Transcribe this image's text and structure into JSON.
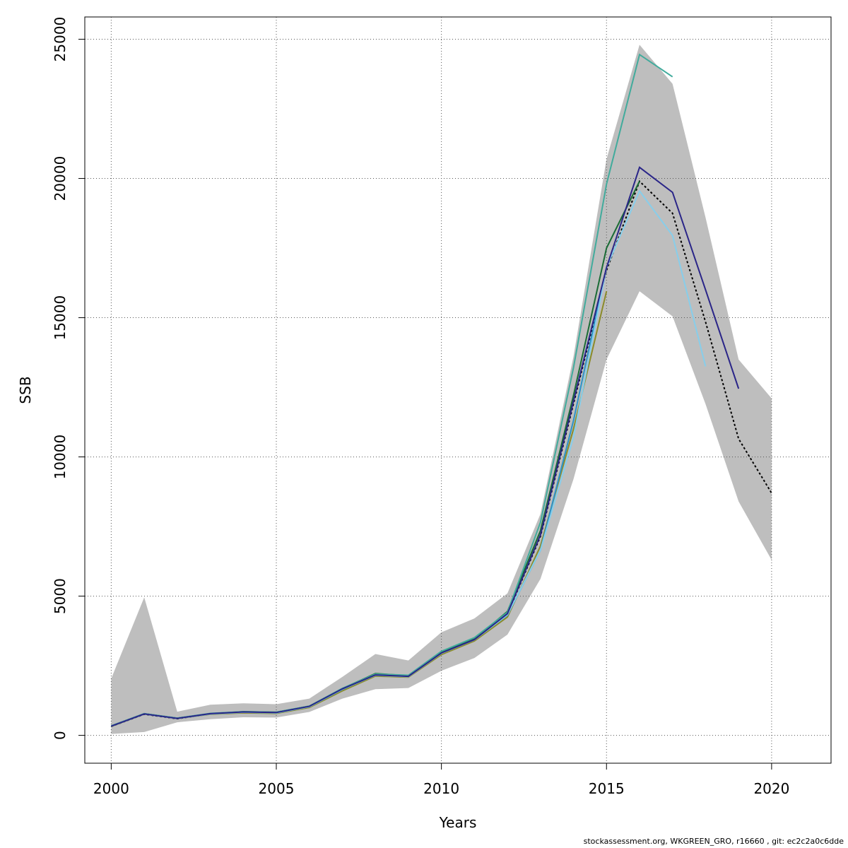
{
  "chart_data": {
    "type": "line",
    "title": "",
    "xlabel": "Years",
    "ylabel": "SSB",
    "xlim": [
      1999.2,
      2021.8
    ],
    "ylim": [
      -1000,
      25800
    ],
    "x_ticks": [
      2000,
      2005,
      2010,
      2015,
      2020
    ],
    "y_ticks": [
      0,
      5000,
      10000,
      15000,
      20000,
      25000
    ],
    "grid": true,
    "confidence_band": {
      "color": "#bebebe",
      "x": [
        2000,
        2001,
        2002,
        2003,
        2004,
        2005,
        2006,
        2007,
        2008,
        2009,
        2010,
        2011,
        2012,
        2013,
        2014,
        2015,
        2016,
        2017,
        2018,
        2019,
        2020
      ],
      "lower": [
        50,
        120,
        470,
        580,
        650,
        640,
        840,
        1320,
        1660,
        1700,
        2320,
        2780,
        3620,
        5620,
        9200,
        13500,
        15950,
        15050,
        11900,
        8400,
        6300
      ],
      "upper": [
        2040,
        4960,
        850,
        1100,
        1150,
        1120,
        1320,
        2100,
        2920,
        2690,
        3700,
        4200,
        5100,
        7950,
        13600,
        20700,
        24800,
        23400,
        18600,
        13500,
        12100
      ]
    },
    "series": [
      {
        "color": "#000000",
        "dashed": true,
        "x": [
          2000,
          2001,
          2002,
          2003,
          2004,
          2005,
          2006,
          2007,
          2008,
          2009,
          2010,
          2011,
          2012,
          2013,
          2014,
          2015,
          2016,
          2017,
          2018,
          2019,
          2020
        ],
        "values": [
          320,
          760,
          600,
          770,
          830,
          810,
          1030,
          1670,
          2150,
          2110,
          2950,
          3430,
          4350,
          7150,
          11900,
          16700,
          19900,
          18750,
          14850,
          10650,
          8700
        ]
      },
      {
        "color": "#8b8b2a",
        "x": [
          2000,
          2001,
          2002,
          2003,
          2004,
          2005,
          2006,
          2007,
          2008,
          2009,
          2010,
          2011,
          2012,
          2013,
          2014,
          2015
        ],
        "values": [
          320,
          770,
          610,
          760,
          810,
          790,
          1000,
          1600,
          2130,
          2090,
          2900,
          3390,
          4250,
          6800,
          11000,
          15950
        ]
      },
      {
        "color": "#2c93c8",
        "x": [
          2000,
          2001,
          2002,
          2003,
          2004,
          2005,
          2006,
          2007,
          2008,
          2009,
          2010,
          2011,
          2012,
          2013,
          2014,
          2015
        ],
        "values": [
          330,
          770,
          610,
          770,
          830,
          810,
          1030,
          1650,
          2170,
          2120,
          2970,
          3450,
          4320,
          6650,
          11300,
          16800
        ]
      },
      {
        "color": "#1a6b35",
        "x": [
          2000,
          2001,
          2002,
          2003,
          2004,
          2005,
          2006,
          2007,
          2008,
          2009,
          2010,
          2011,
          2012,
          2013,
          2014,
          2015,
          2016
        ],
        "values": [
          340,
          780,
          620,
          780,
          850,
          830,
          1050,
          1680,
          2220,
          2140,
          2980,
          3460,
          4450,
          7350,
          12200,
          17500,
          19900
        ]
      },
      {
        "color": "#41ab9c",
        "x": [
          2000,
          2001,
          2002,
          2003,
          2004,
          2005,
          2006,
          2007,
          2008,
          2009,
          2010,
          2011,
          2012,
          2013,
          2014,
          2015,
          2016,
          2017
        ],
        "values": [
          340,
          780,
          620,
          790,
          850,
          830,
          1050,
          1690,
          2200,
          2160,
          3020,
          3510,
          4420,
          7650,
          13200,
          19800,
          24450,
          23650
        ]
      },
      {
        "color": "#87ceeb",
        "x": [
          2000,
          2001,
          2002,
          2003,
          2004,
          2005,
          2006,
          2007,
          2008,
          2009,
          2010,
          2011,
          2012,
          2013,
          2014,
          2015,
          2016,
          2017,
          2018
        ],
        "values": [
          330,
          770,
          610,
          770,
          830,
          810,
          1030,
          1660,
          2160,
          2110,
          2950,
          3430,
          4330,
          6650,
          10700,
          16800,
          19550,
          17950,
          13250
        ]
      },
      {
        "color": "#2a2588",
        "x": [
          2000,
          2001,
          2002,
          2003,
          2004,
          2005,
          2006,
          2007,
          2008,
          2009,
          2010,
          2011,
          2012,
          2013,
          2014,
          2015,
          2016,
          2017,
          2018,
          2019
        ],
        "values": [
          330,
          770,
          610,
          780,
          840,
          820,
          1040,
          1670,
          2170,
          2120,
          2960,
          3440,
          4370,
          7200,
          12000,
          16800,
          20400,
          19500,
          16000,
          12450
        ]
      }
    ]
  },
  "footer": "stockassessment.org, WKGREEN_GRO, r16660 , git: ec2c2a0c6dde"
}
